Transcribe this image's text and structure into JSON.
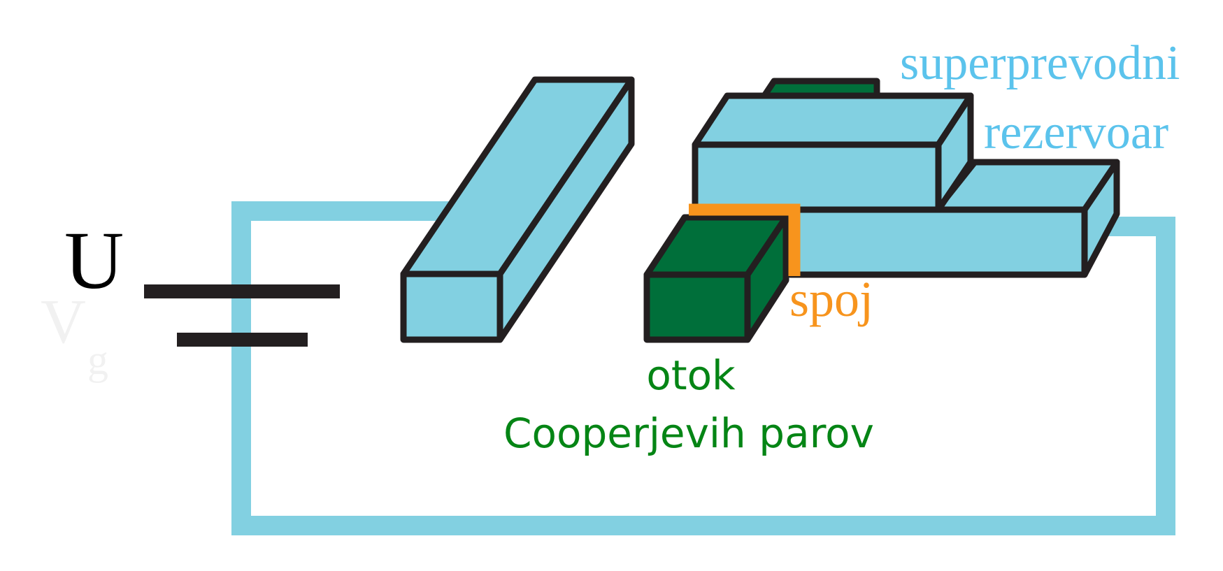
{
  "labels": {
    "voltage": "U",
    "reservoir_line1": "superprevodni",
    "reservoir_line2": "rezervoar",
    "junction": "spoj",
    "island_line1": "otok",
    "island_line2": "Cooperjevih parov"
  },
  "colors": {
    "wire": "#82d0e1",
    "block_face": "#82d0e1",
    "outline": "#231f20",
    "island": "#006f3a",
    "junction": "#f7941d",
    "reservoir_label": "#5bc3ec",
    "junction_label": "#f7941d",
    "island_label": "#058515",
    "voltage_label": "#000000"
  }
}
